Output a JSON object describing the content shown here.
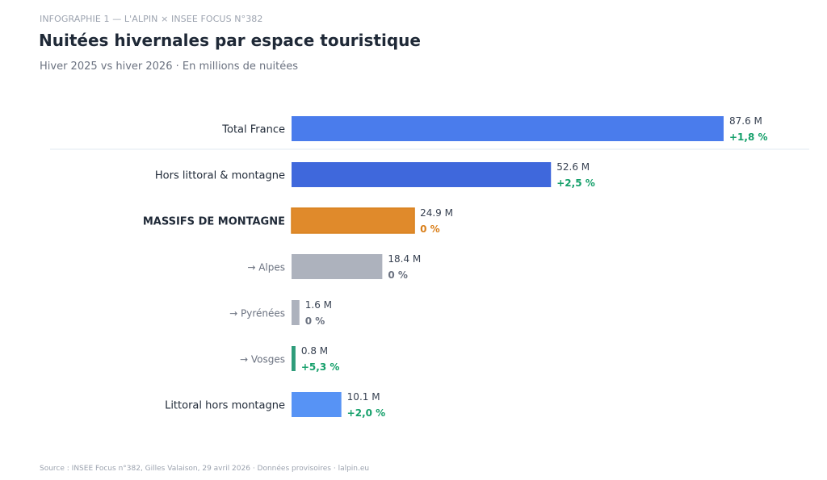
{
  "header": {
    "kicker": "INFOGRAPHIE 1  —  L'ALPIN × INSEE FOCUS N°382",
    "title": "Nuitées hivernales par espace touristique",
    "subtitle": "Hiver 2025 vs hiver 2026  ·  En millions de nuitées"
  },
  "footer": {
    "source": "Source : INSEE Focus n°382, Gilles Valaison, 29 avril 2026  ·  Données provisoires  ·  lalpin.eu"
  },
  "colors": {
    "total": "#4a7cec",
    "hors": "#3f68dc",
    "massifs": "#e08a2b",
    "massifs_border": "#d9821f",
    "sub_gray": "#adb2bd",
    "vosges": "#2e9c7a",
    "littoral": "#5793f5",
    "positive": "#16a06b",
    "orange_text": "#d97f1a",
    "neutral_text": "#6b7280"
  },
  "chart_data": {
    "type": "bar",
    "orientation": "horizontal",
    "unit": "M",
    "categories": [
      "Total France",
      "Hors littoral & montagne",
      "MASSIFS DE MONTAGNE",
      "→ Alpes",
      "→ Pyrénées",
      "→ Vosges",
      "Littoral hors montagne"
    ],
    "values": [
      87.6,
      52.6,
      24.9,
      18.4,
      1.6,
      0.8,
      10.1
    ],
    "value_labels": [
      "87.6 M",
      "52.6 M",
      "24.9 M",
      "18.4 M",
      "1.6 M",
      "0.8 M",
      "10.1 M"
    ],
    "change_labels": [
      "+1,8 %",
      "+2,5 %",
      "0 %",
      "0 %",
      "0 %",
      "+5,3 %",
      "+2,0 %"
    ],
    "styles": [
      "total",
      "main",
      "highlight",
      "sub",
      "sub",
      "sub",
      "main"
    ],
    "bar_colors": [
      "#4a7cec",
      "#3f68dc",
      "#e08a2b",
      "#adb2bd",
      "#adb2bd",
      "#2e9c7a",
      "#5793f5"
    ],
    "change_colors": [
      "#16a06b",
      "#16a06b",
      "#d97f1a",
      "#6b7280",
      "#6b7280",
      "#16a06b",
      "#16a06b"
    ],
    "xlim": [
      0,
      87.6
    ],
    "grid": false,
    "legend": false
  }
}
